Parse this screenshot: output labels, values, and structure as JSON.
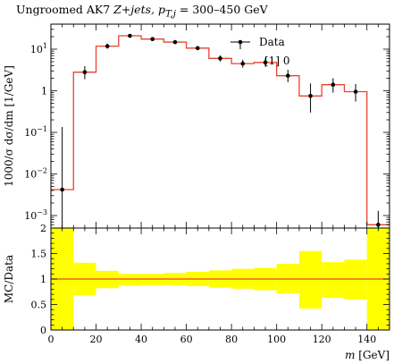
{
  "title": {
    "prefix": "Ungroomed AK7 ",
    "zj": "Z+jets, ",
    "pt": "p",
    "pt_sub": "T,j",
    "suffix": " = 300–450 GeV"
  },
  "chart_data": [
    {
      "type": "line",
      "panel": "main",
      "ylabel": "1000/σ dσ/dm [1/GeV]",
      "yscale": "log",
      "ylim": [
        0.0005,
        40
      ],
      "xlim": [
        0,
        150
      ],
      "y_ticks": [
        {
          "value": 0.001,
          "base": "10",
          "exp": "−3"
        },
        {
          "value": 0.01,
          "base": "10",
          "exp": "−2"
        },
        {
          "value": 0.1,
          "base": "10",
          "exp": "−1"
        },
        {
          "value": 1,
          "base": "1",
          "exp": ""
        },
        {
          "value": 10,
          "base": "10",
          "exp": "1"
        }
      ],
      "legend": {
        "position": "top-right",
        "entries": [
          {
            "label": "Data"
          },
          {
            "label": "[1] 0"
          }
        ]
      },
      "series": [
        {
          "name": "Data",
          "style": "points",
          "color": "#000000",
          "x": [
            5,
            15,
            25,
            35,
            45,
            55,
            65,
            75,
            85,
            95,
            105,
            115,
            125,
            135,
            145
          ],
          "values": [
            0.0042,
            2.8,
            11.8,
            21.0,
            17.5,
            14.8,
            10.6,
            6.0,
            4.5,
            4.8,
            2.3,
            0.75,
            1.4,
            0.95,
            0.0006
          ],
          "err_low": [
            0.0037,
            0.9,
            1.5,
            1.6,
            1.4,
            1.3,
            1.1,
            0.9,
            0.9,
            1.0,
            0.7,
            0.45,
            0.5,
            0.4,
            0.00045
          ],
          "err_high": [
            0.13,
            1.1,
            1.7,
            1.8,
            1.6,
            1.5,
            1.3,
            1.1,
            1.1,
            1.3,
            0.9,
            0.75,
            0.6,
            0.5,
            0.0007
          ]
        },
        {
          "name": "",
          "style": "histogram",
          "color": "#e8432f",
          "bin_edges": [
            0,
            10,
            20,
            30,
            40,
            50,
            60,
            70,
            80,
            90,
            100,
            110,
            120,
            130,
            140,
            150
          ],
          "values": [
            0.0042,
            2.8,
            11.8,
            21.0,
            17.5,
            14.8,
            10.6,
            6.0,
            4.5,
            4.8,
            2.3,
            0.75,
            1.4,
            0.95,
            0.0006
          ]
        }
      ]
    },
    {
      "type": "area",
      "panel": "ratio",
      "ylabel": "MC/Data",
      "xlabel_var": "m",
      "xlabel_unit": " [GeV]",
      "xlim": [
        0,
        150
      ],
      "ylim": [
        0,
        2
      ],
      "x_ticks": [
        0,
        20,
        40,
        60,
        80,
        100,
        120,
        140
      ],
      "y_ticks": [
        0,
        0.5,
        1,
        1.5,
        2
      ],
      "reference_line": 1,
      "band_color": "#ffff00",
      "line_color": "#e8432f",
      "bin_edges": [
        0,
        10,
        20,
        30,
        40,
        50,
        60,
        70,
        80,
        90,
        100,
        110,
        120,
        130,
        140,
        150
      ],
      "band_low": [
        0,
        0.68,
        0.82,
        0.87,
        0.88,
        0.88,
        0.86,
        0.83,
        0.81,
        0.78,
        0.72,
        0.42,
        0.63,
        0.6,
        0
      ],
      "band_high": [
        2,
        1.32,
        1.16,
        1.1,
        1.1,
        1.12,
        1.14,
        1.17,
        1.2,
        1.22,
        1.3,
        1.55,
        1.33,
        1.38,
        2
      ]
    }
  ]
}
